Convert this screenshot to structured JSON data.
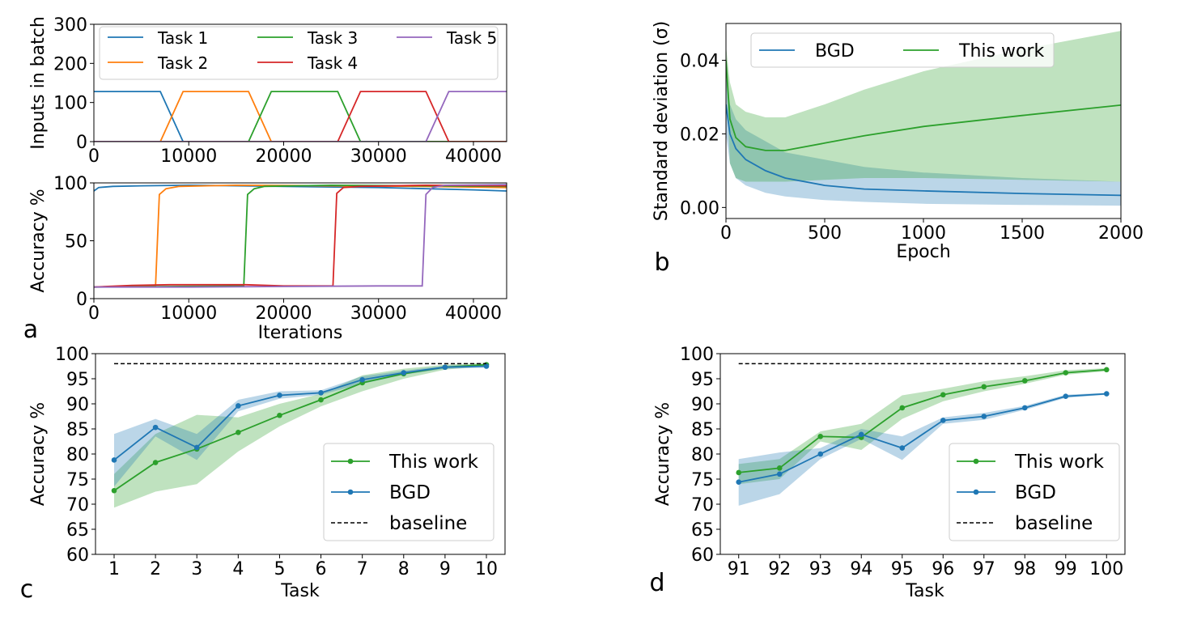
{
  "chart_data": [
    {
      "id": "a1",
      "type": "line",
      "panel_label": "",
      "ylabel": "Inputs in batch",
      "xlabel": "",
      "xlim": [
        0,
        43500
      ],
      "ylim": [
        0,
        300
      ],
      "xticks": [
        0,
        10000,
        20000,
        30000,
        40000
      ],
      "yticks": [
        0,
        100,
        200,
        300
      ],
      "series": [
        {
          "name": "Task 1",
          "color": "#1f77b4",
          "x": [
            0,
            7000,
            9400,
            43500
          ],
          "y": [
            128,
            128,
            0,
            0
          ]
        },
        {
          "name": "Task 2",
          "color": "#ff7f0e",
          "x": [
            0,
            7000,
            9400,
            16300,
            18700,
            43500
          ],
          "y": [
            0,
            0,
            128,
            128,
            0,
            0
          ]
        },
        {
          "name": "Task 3",
          "color": "#2ca02c",
          "x": [
            0,
            16300,
            18700,
            25700,
            28100,
            43500
          ],
          "y": [
            0,
            0,
            128,
            128,
            0,
            0
          ]
        },
        {
          "name": "Task 4",
          "color": "#d62728",
          "x": [
            0,
            25700,
            28100,
            35000,
            37400,
            43500
          ],
          "y": [
            0,
            0,
            128,
            128,
            0,
            0
          ]
        },
        {
          "name": "Task 5",
          "color": "#9467bd",
          "x": [
            0,
            35000,
            37400,
            43500
          ],
          "y": [
            0,
            0,
            128,
            128
          ]
        }
      ]
    },
    {
      "id": "a2",
      "type": "line",
      "panel_label": "a",
      "ylabel": "Accuracy %",
      "xlabel": "Iterations",
      "xlim": [
        0,
        43500
      ],
      "ylim": [
        0,
        100
      ],
      "xticks": [
        0,
        10000,
        20000,
        30000,
        40000
      ],
      "yticks": [
        0,
        50,
        100
      ],
      "series": [
        {
          "name": "Task 1",
          "color": "#1f77b4",
          "x": [
            0,
            500,
            2000,
            5000,
            10000,
            20000,
            30000,
            40000,
            43500
          ],
          "y": [
            93,
            96,
            97,
            97.5,
            98,
            97,
            96,
            94,
            93
          ]
        },
        {
          "name": "Task 2",
          "color": "#ff7f0e",
          "x": [
            0,
            6500,
            6900,
            7600,
            9000,
            15000,
            25000,
            35000,
            43500
          ],
          "y": [
            10,
            11,
            90,
            95,
            97,
            98,
            97.5,
            97,
            96
          ]
        },
        {
          "name": "Task 3",
          "color": "#2ca02c",
          "x": [
            0,
            15800,
            16200,
            16900,
            18000,
            25000,
            35000,
            43500
          ],
          "y": [
            10,
            11,
            90,
            95,
            97,
            98,
            97.5,
            97
          ]
        },
        {
          "name": "Task 4",
          "color": "#d62728",
          "x": [
            0,
            4000,
            8000,
            12000,
            16000,
            20000,
            25200,
            25600,
            26300,
            28000,
            35000,
            43500
          ],
          "y": [
            10,
            11.5,
            12,
            12,
            12,
            11,
            11,
            91,
            96,
            97,
            98,
            97.5
          ]
        },
        {
          "name": "Task 5",
          "color": "#9467bd",
          "x": [
            0,
            10000,
            20000,
            30000,
            34600,
            35000,
            35700,
            37000,
            43500
          ],
          "y": [
            10,
            10,
            10.5,
            11,
            11,
            90,
            96,
            98,
            98.5
          ]
        }
      ]
    },
    {
      "id": "b",
      "type": "line",
      "panel_label": "b",
      "ylabel": "Standard deviation (σ)",
      "xlabel": "Epoch",
      "xlim": [
        0,
        2000
      ],
      "ylim": [
        -0.003,
        0.05
      ],
      "xticks": [
        0,
        500,
        1000,
        1500,
        2000
      ],
      "yticks": [
        0.0,
        0.02,
        0.04
      ],
      "ytick_labels": [
        "0.00",
        "0.02",
        "0.04"
      ],
      "legend": "upper",
      "series": [
        {
          "name": "BGD",
          "color": "#1f77b4",
          "x": [
            0,
            20,
            50,
            100,
            200,
            300,
            500,
            700,
            1000,
            1500,
            2000
          ],
          "y": [
            0.028,
            0.02,
            0.016,
            0.013,
            0.01,
            0.008,
            0.006,
            0.005,
            0.0045,
            0.0038,
            0.0033
          ],
          "lower": [
            0.02,
            0.012,
            0.008,
            0.006,
            0.004,
            0.003,
            0.002,
            0.0015,
            0.001,
            0.0007,
            0.0005
          ],
          "upper": [
            0.036,
            0.028,
            0.024,
            0.021,
            0.018,
            0.015,
            0.013,
            0.011,
            0.0095,
            0.008,
            0.007
          ]
        },
        {
          "name": "This work",
          "color": "#2ca02c",
          "x": [
            0,
            20,
            50,
            100,
            200,
            300,
            500,
            700,
            1000,
            1500,
            2000
          ],
          "y": [
            0.04,
            0.024,
            0.019,
            0.0165,
            0.0155,
            0.0155,
            0.0175,
            0.0195,
            0.022,
            0.025,
            0.0278
          ],
          "lower": [
            0.036,
            0.012,
            0.008,
            0.007,
            0.007,
            0.007,
            0.0075,
            0.008,
            0.008,
            0.0075,
            0.007
          ],
          "upper": [
            0.044,
            0.034,
            0.028,
            0.026,
            0.0245,
            0.0245,
            0.028,
            0.032,
            0.037,
            0.043,
            0.048
          ]
        }
      ]
    },
    {
      "id": "c",
      "type": "line",
      "panel_label": "c",
      "ylabel": "Accuracy %",
      "xlabel": "Task",
      "x": [
        1,
        2,
        3,
        4,
        5,
        6,
        7,
        8,
        9,
        10
      ],
      "xlim": [
        0.55,
        10.45
      ],
      "ylim": [
        60,
        100
      ],
      "xticks": [
        1,
        2,
        3,
        4,
        5,
        6,
        7,
        8,
        9,
        10
      ],
      "yticks": [
        60,
        65,
        70,
        75,
        80,
        85,
        90,
        95,
        100
      ],
      "legend": "lower-right",
      "series": [
        {
          "name": "This work",
          "color": "#2ca02c",
          "marker": true,
          "y": [
            72.7,
            78.3,
            81.0,
            84.3,
            87.7,
            90.8,
            94.2,
            96.0,
            97.3,
            97.8
          ],
          "lower": [
            69.3,
            72.5,
            74.0,
            80.5,
            85.5,
            89.5,
            92.5,
            95.0,
            96.8,
            97.5
          ],
          "upper": [
            76.0,
            84.0,
            87.8,
            87.3,
            90.0,
            92.0,
            95.7,
            97.0,
            97.8,
            98.2
          ]
        },
        {
          "name": "BGD",
          "color": "#1f77b4",
          "marker": true,
          "y": [
            78.8,
            85.3,
            81.3,
            89.6,
            91.7,
            92.2,
            94.8,
            96.2,
            97.3,
            97.5
          ],
          "lower": [
            73.5,
            83.5,
            78.8,
            88.5,
            91.0,
            91.8,
            94.0,
            95.8,
            97.0,
            97.2
          ],
          "upper": [
            84.0,
            87.0,
            84.0,
            90.8,
            92.5,
            92.7,
            95.5,
            96.6,
            97.6,
            97.9
          ]
        },
        {
          "name": "baseline",
          "color": "#000000",
          "dashed": true,
          "y": [
            98.0,
            98.0,
            98.0,
            98.0,
            98.0,
            98.0,
            98.0,
            98.0,
            98.0,
            98.0
          ]
        }
      ]
    },
    {
      "id": "d",
      "type": "line",
      "panel_label": "d",
      "ylabel": "Accuracy %",
      "xlabel": "Task",
      "x": [
        91,
        92,
        93,
        94,
        95,
        96,
        97,
        98,
        99,
        100
      ],
      "xlim": [
        90.55,
        100.45
      ],
      "ylim": [
        60,
        100
      ],
      "xticks": [
        91,
        92,
        93,
        94,
        95,
        96,
        97,
        98,
        99,
        100
      ],
      "yticks": [
        60,
        65,
        70,
        75,
        80,
        85,
        90,
        95,
        100
      ],
      "legend": "lower-right",
      "series": [
        {
          "name": "This work",
          "color": "#2ca02c",
          "marker": true,
          "y": [
            76.3,
            77.2,
            83.5,
            83.3,
            89.2,
            91.8,
            93.4,
            94.6,
            96.2,
            96.8
          ],
          "lower": [
            74.0,
            75.0,
            82.5,
            80.8,
            87.0,
            90.5,
            92.5,
            94.0,
            95.8,
            96.5
          ],
          "upper": [
            78.0,
            79.0,
            84.5,
            86.0,
            91.7,
            93.0,
            94.5,
            95.5,
            96.7,
            97.1
          ]
        },
        {
          "name": "BGD",
          "color": "#1f77b4",
          "marker": true,
          "y": [
            74.4,
            76.0,
            80.0,
            83.9,
            81.2,
            86.7,
            87.5,
            89.2,
            91.5,
            92.0
          ],
          "lower": [
            69.7,
            72.0,
            79.0,
            83.0,
            78.8,
            86.0,
            86.8,
            88.8,
            91.2,
            91.8
          ],
          "upper": [
            79.0,
            80.3,
            81.2,
            85.0,
            83.5,
            87.3,
            88.2,
            89.6,
            91.8,
            92.2
          ]
        },
        {
          "name": "baseline",
          "color": "#000000",
          "dashed": true,
          "y": [
            98.0,
            98.0,
            98.0,
            98.0,
            98.0,
            98.0,
            98.0,
            98.0,
            98.0,
            98.0
          ]
        }
      ]
    }
  ]
}
